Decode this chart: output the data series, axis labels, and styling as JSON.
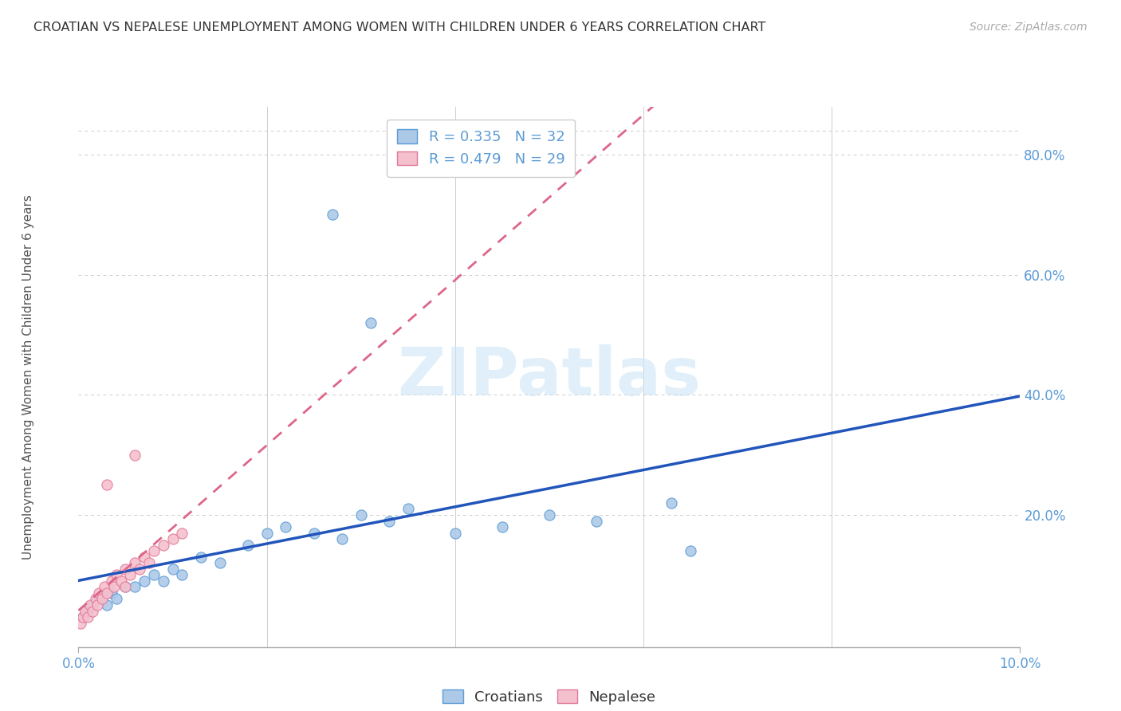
{
  "title": "CROATIAN VS NEPALESE UNEMPLOYMENT AMONG WOMEN WITH CHILDREN UNDER 6 YEARS CORRELATION CHART",
  "source": "Source: ZipAtlas.com",
  "ylabel": "Unemployment Among Women with Children Under 6 years",
  "xlim": [
    0.0,
    10.0
  ],
  "ylim": [
    -2.0,
    88.0
  ],
  "yticks": [
    0,
    20,
    40,
    60,
    80
  ],
  "ytick_labels": [
    "",
    "20.0%",
    "40.0%",
    "60.0%",
    "80.0%"
  ],
  "title_color": "#333333",
  "source_color": "#aaaaaa",
  "axis_color": "#5b9bd5",
  "watermark": "ZIPatlas",
  "croatian_color": "#adc9e8",
  "croatian_edge": "#5b9bd5",
  "nepalese_color": "#f5c0ce",
  "nepalese_edge": "#e07898",
  "trend_blue": "#2255bb",
  "trend_pink": "#dd6688",
  "grid_color": "#cccccc",
  "bg_color": "#ffffff",
  "cro_x": [
    0.05,
    0.1,
    0.15,
    0.2,
    0.3,
    0.35,
    0.4,
    0.5,
    0.6,
    0.7,
    0.8,
    0.9,
    1.0,
    1.1,
    1.3,
    1.5,
    1.8,
    2.0,
    2.2,
    2.5,
    2.8,
    3.0,
    3.3,
    3.5,
    4.0,
    4.5,
    5.0,
    5.5,
    6.3,
    6.5,
    2.7,
    3.1
  ],
  "cro_y": [
    3,
    4,
    5,
    6,
    5,
    7,
    6,
    8,
    8,
    9,
    10,
    9,
    11,
    10,
    13,
    12,
    15,
    17,
    18,
    17,
    16,
    20,
    19,
    21,
    17,
    18,
    20,
    19,
    22,
    14,
    70,
    52
  ],
  "nep_x": [
    0.02,
    0.05,
    0.07,
    0.1,
    0.12,
    0.15,
    0.18,
    0.2,
    0.22,
    0.25,
    0.28,
    0.3,
    0.35,
    0.38,
    0.4,
    0.45,
    0.5,
    0.55,
    0.6,
    0.65,
    0.7,
    0.75,
    0.8,
    0.9,
    1.0,
    1.1,
    0.6,
    0.3,
    0.5
  ],
  "nep_y": [
    2,
    3,
    4,
    3,
    5,
    4,
    6,
    5,
    7,
    6,
    8,
    7,
    9,
    8,
    10,
    9,
    11,
    10,
    12,
    11,
    13,
    12,
    14,
    15,
    16,
    17,
    30,
    25,
    8
  ]
}
